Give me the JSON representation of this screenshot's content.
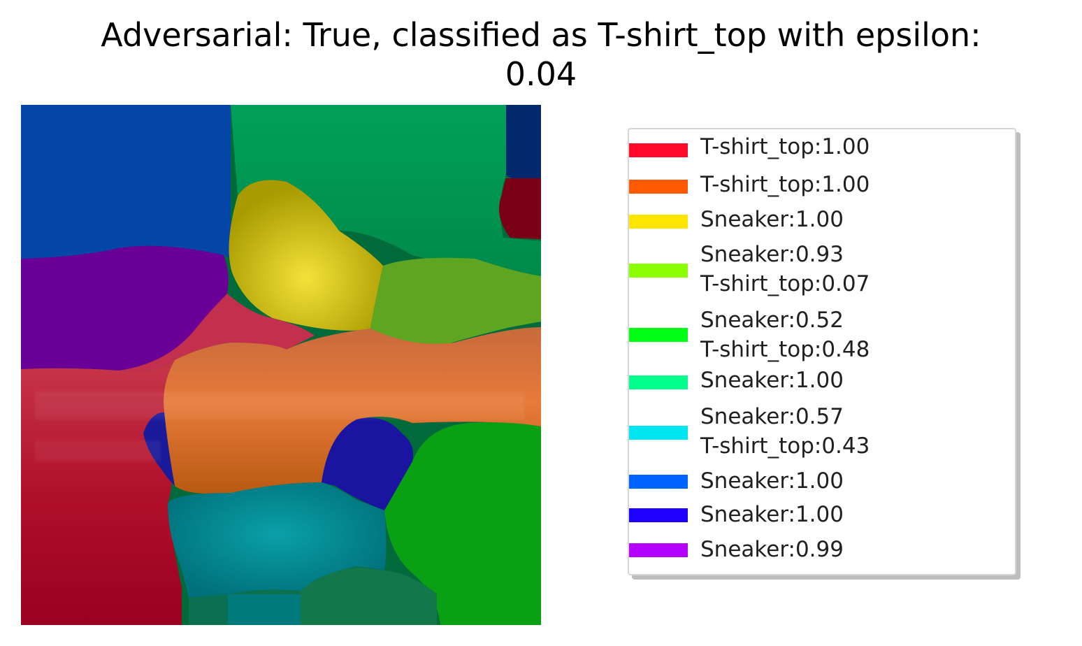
{
  "title": {
    "line1": "Adversarial: True, classified as T-shirt_top with epsilon:",
    "line2": "0.04"
  },
  "legend": {
    "items": [
      {
        "color": "#ff0a2a",
        "lines": [
          "T-shirt_top:1.00"
        ]
      },
      {
        "color": "#ff5a00",
        "lines": [
          "T-shirt_top:1.00"
        ]
      },
      {
        "color": "#ffe600",
        "lines": [
          "Sneaker:1.00"
        ]
      },
      {
        "color": "#8cff00",
        "lines": [
          "Sneaker:0.93",
          "T-shirt_top:0.07"
        ]
      },
      {
        "color": "#00ff14",
        "lines": [
          "Sneaker:0.52",
          "T-shirt_top:0.48"
        ]
      },
      {
        "color": "#00ff8c",
        "lines": [
          "Sneaker:1.00"
        ]
      },
      {
        "color": "#00e6f0",
        "lines": [
          "Sneaker:0.57",
          "T-shirt_top:0.43"
        ]
      },
      {
        "color": "#0064ff",
        "lines": [
          "Sneaker:1.00"
        ]
      },
      {
        "color": "#1e00ff",
        "lines": [
          "Sneaker:1.00"
        ]
      },
      {
        "color": "#b400ff",
        "lines": [
          "Sneaker:0.99"
        ]
      }
    ]
  }
}
